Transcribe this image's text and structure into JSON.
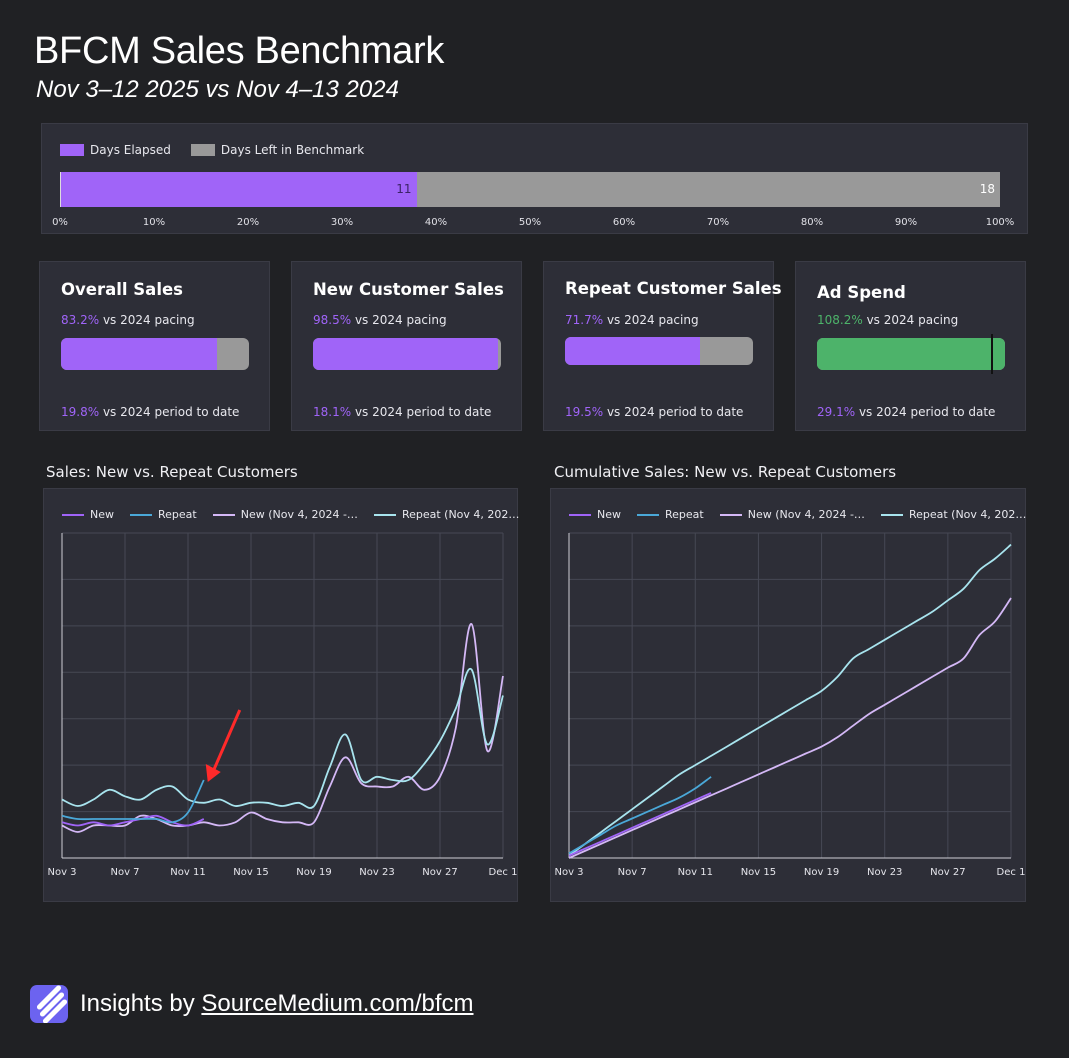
{
  "header": {
    "title": "BFCM Sales Benchmark",
    "subtitle": "Nov 3–12 2025 vs Nov 4–13 2024"
  },
  "progress": {
    "legend": [
      "Days Elapsed",
      "Days Left in Benchmark"
    ],
    "elapsed": 11,
    "left": 18,
    "colors": {
      "elapsed": "#a064f8",
      "left": "#999999"
    },
    "axis_ticks": [
      "0%",
      "10%",
      "20%",
      "30%",
      "40%",
      "50%",
      "60%",
      "70%",
      "80%",
      "90%",
      "100%"
    ]
  },
  "cards": [
    {
      "title": "Overall Sales",
      "pacing_value": "83.2%",
      "pacing_text": " vs 2024 pacing",
      "bar_fraction": 0.832,
      "period_value": "19.8%",
      "period_text": " vs 2024 period to date",
      "color": "#a064f8"
    },
    {
      "title": "New Customer Sales",
      "pacing_value": "98.5%",
      "pacing_text": " vs 2024 pacing",
      "bar_fraction": 0.985,
      "period_value": "18.1%",
      "period_text": " vs 2024 period to date",
      "color": "#a064f8"
    },
    {
      "title": "Repeat Customer Sales",
      "pacing_value": "71.7%",
      "pacing_text": " vs 2024 pacing",
      "bar_fraction": 0.717,
      "period_value": "19.5%",
      "period_text": " vs 2024 period to date",
      "color": "#a064f8"
    },
    {
      "title": "Ad Spend",
      "pacing_value": "108.2%",
      "pacing_text": " vs 2024 pacing",
      "bar_fraction": 1.0,
      "marker_fraction": 0.924,
      "period_value": "29.1%",
      "period_text": " vs 2024 period to date",
      "color": "#4db36a"
    }
  ],
  "chart_data": [
    {
      "type": "line",
      "title": "Sales: New vs. Repeat Customers",
      "x_ticks": [
        "Nov 3",
        "Nov 7",
        "Nov 11",
        "Nov 15",
        "Nov 19",
        "Nov 23",
        "Nov 27",
        "Dec 1"
      ],
      "x_range": [
        0,
        28
      ],
      "y_range": [
        0,
        10
      ],
      "grid": true,
      "legend": "top",
      "annotation": {
        "type": "arrow",
        "color": "#ff2a2a",
        "points_to": {
          "series": "Repeat",
          "x": 9,
          "y": 2.4
        }
      },
      "series": [
        {
          "name": "New",
          "color": "#a064f8",
          "x": [
            0,
            1,
            2,
            3,
            4,
            5,
            6,
            7,
            8,
            9
          ],
          "y": [
            1.1,
            1.0,
            1.1,
            1.0,
            1.1,
            1.2,
            1.3,
            1.1,
            1.0,
            1.2
          ]
        },
        {
          "name": "Repeat",
          "color": "#4aa8d8",
          "x": [
            0,
            1,
            2,
            3,
            4,
            5,
            6,
            7,
            8,
            9
          ],
          "y": [
            1.3,
            1.2,
            1.2,
            1.2,
            1.2,
            1.2,
            1.2,
            1.1,
            1.4,
            2.4
          ]
        },
        {
          "name": "New (Nov 4, 2024 -…",
          "color": "#d4b8f6",
          "x": [
            0,
            1,
            2,
            3,
            4,
            5,
            6,
            7,
            8,
            9,
            10,
            11,
            12,
            13,
            14,
            15,
            16,
            17,
            18,
            19,
            20,
            21,
            22,
            23,
            24,
            25,
            26,
            27,
            28
          ],
          "y": [
            1.0,
            0.8,
            1.0,
            1.0,
            1.0,
            1.3,
            1.2,
            1.0,
            1.0,
            1.1,
            1.0,
            1.1,
            1.4,
            1.2,
            1.1,
            1.1,
            1.1,
            2.2,
            3.1,
            2.3,
            2.2,
            2.2,
            2.5,
            2.1,
            2.5,
            4.0,
            7.2,
            3.3,
            5.6
          ]
        },
        {
          "name": "Repeat (Nov 4, 202…",
          "color": "#a8e4ee",
          "x": [
            0,
            1,
            2,
            3,
            4,
            5,
            6,
            7,
            8,
            9,
            10,
            11,
            12,
            13,
            14,
            15,
            16,
            17,
            18,
            19,
            20,
            21,
            22,
            23,
            24,
            25,
            26,
            27,
            28
          ],
          "y": [
            1.8,
            1.6,
            1.8,
            2.1,
            1.9,
            1.8,
            2.1,
            2.2,
            1.8,
            1.7,
            1.8,
            1.6,
            1.7,
            1.7,
            1.6,
            1.7,
            1.6,
            2.8,
            3.8,
            2.4,
            2.5,
            2.4,
            2.4,
            2.9,
            3.6,
            4.6,
            5.8,
            3.5,
            5.0
          ]
        }
      ]
    },
    {
      "type": "line",
      "title": "Cumulative Sales: New vs. Repeat Customers",
      "x_ticks": [
        "Nov 3",
        "Nov 7",
        "Nov 11",
        "Nov 15",
        "Nov 19",
        "Nov 23",
        "Nov 27",
        "Dec 1"
      ],
      "x_range": [
        0,
        28
      ],
      "y_range": [
        0,
        7
      ],
      "grid": true,
      "legend": "top",
      "series": [
        {
          "name": "New",
          "color": "#a064f8",
          "x": [
            0,
            1,
            2,
            3,
            4,
            5,
            6,
            7,
            8,
            9
          ],
          "y": [
            0.05,
            0.2,
            0.35,
            0.5,
            0.65,
            0.8,
            0.95,
            1.1,
            1.25,
            1.4
          ]
        },
        {
          "name": "Repeat",
          "color": "#4aa8d8",
          "x": [
            0,
            1,
            2,
            3,
            4,
            5,
            6,
            7,
            8,
            9
          ],
          "y": [
            0.1,
            0.3,
            0.5,
            0.7,
            0.85,
            1.0,
            1.15,
            1.3,
            1.5,
            1.75
          ]
        },
        {
          "name": "New (Nov 4, 2024 -…",
          "color": "#d4b8f6",
          "x": [
            0,
            1,
            2,
            3,
            4,
            5,
            6,
            7,
            8,
            9,
            10,
            11,
            12,
            13,
            14,
            15,
            16,
            17,
            18,
            19,
            20,
            21,
            22,
            23,
            24,
            25,
            26,
            27,
            28
          ],
          "y": [
            0.0,
            0.15,
            0.3,
            0.45,
            0.6,
            0.75,
            0.9,
            1.05,
            1.2,
            1.35,
            1.5,
            1.65,
            1.8,
            1.95,
            2.1,
            2.25,
            2.4,
            2.6,
            2.85,
            3.1,
            3.3,
            3.5,
            3.7,
            3.9,
            4.1,
            4.3,
            4.8,
            5.1,
            5.6
          ]
        },
        {
          "name": "Repeat (Nov 4, 202…",
          "color": "#a8e4ee",
          "x": [
            0,
            1,
            2,
            3,
            4,
            5,
            6,
            7,
            8,
            9,
            10,
            11,
            12,
            13,
            14,
            15,
            16,
            17,
            18,
            19,
            20,
            21,
            22,
            23,
            24,
            25,
            26,
            27,
            28
          ],
          "y": [
            0.05,
            0.3,
            0.55,
            0.8,
            1.05,
            1.3,
            1.55,
            1.8,
            2.0,
            2.2,
            2.4,
            2.6,
            2.8,
            3.0,
            3.2,
            3.4,
            3.6,
            3.9,
            4.3,
            4.5,
            4.7,
            4.9,
            5.1,
            5.3,
            5.55,
            5.8,
            6.2,
            6.45,
            6.75
          ]
        }
      ]
    }
  ],
  "footer": {
    "prefix": "Insights by ",
    "link": "SourceMedium.com/bfcm"
  }
}
